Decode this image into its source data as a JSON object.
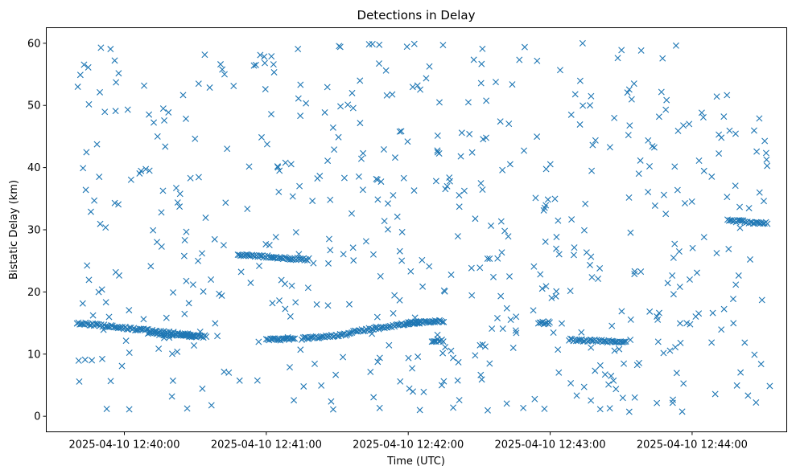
{
  "chart_data": {
    "type": "scatter",
    "title": "Detections in Delay",
    "xlabel": "Time (UTC)",
    "ylabel": "Bistatic Delay (km)",
    "marker": "x",
    "color": "#1f77b4",
    "grid": false,
    "xlim": [
      "2025-04-10 12:39:27",
      "2025-04-10 12:44:40"
    ],
    "ylim": [
      -2.5,
      62.5
    ],
    "xticks": [
      "2025-04-10 12:40:00",
      "2025-04-10 12:41:00",
      "2025-04-10 12:42:00",
      "2025-04-10 12:43:00",
      "2025-04-10 12:44:00"
    ],
    "yticks": [
      0,
      10,
      20,
      30,
      40,
      50,
      60
    ],
    "tracks": [
      {
        "start": "2025-04-10 12:39:40",
        "end": "2025-04-10 12:40:30",
        "delay_start": 15.0,
        "delay_end": 13.0
      },
      {
        "start": "2025-04-10 12:40:10",
        "end": "2025-04-10 12:40:35",
        "delay_start": 13.4,
        "delay_end": 12.8
      },
      {
        "start": "2025-04-10 12:40:48",
        "end": "2025-04-10 12:41:03",
        "delay_start": 26.0,
        "delay_end": 25.6
      },
      {
        "start": "2025-04-10 12:41:03",
        "end": "2025-04-10 12:41:18",
        "delay_start": 25.6,
        "delay_end": 25.2
      },
      {
        "start": "2025-04-10 12:41:00",
        "end": "2025-04-10 12:41:12",
        "delay_start": 12.3,
        "delay_end": 12.4
      },
      {
        "start": "2025-04-10 12:41:15",
        "end": "2025-04-10 12:41:35",
        "delay_start": 12.5,
        "delay_end": 13.2
      },
      {
        "start": "2025-04-10 12:41:35",
        "end": "2025-04-10 12:42:05",
        "delay_start": 13.5,
        "delay_end": 15.2
      },
      {
        "start": "2025-04-10 12:42:00",
        "end": "2025-04-10 12:42:15",
        "delay_start": 15.0,
        "delay_end": 15.3
      },
      {
        "start": "2025-04-10 12:42:10",
        "end": "2025-04-10 12:42:15",
        "delay_start": 12.2,
        "delay_end": 12.2
      },
      {
        "start": "2025-04-10 12:42:55",
        "end": "2025-04-10 12:43:00",
        "delay_start": 15.0,
        "delay_end": 15.0
      },
      {
        "start": "2025-04-10 12:43:08",
        "end": "2025-04-10 12:43:32",
        "delay_start": 12.3,
        "delay_end": 11.9
      },
      {
        "start": "2025-04-10 12:44:15",
        "end": "2025-04-10 12:44:32",
        "delay_start": 31.5,
        "delay_end": 31.0
      }
    ],
    "noise": {
      "count": 560,
      "x_range": [
        "2025-04-10 12:39:40",
        "2025-04-10 12:44:33"
      ],
      "y_range": [
        0.5,
        60.0
      ]
    }
  }
}
